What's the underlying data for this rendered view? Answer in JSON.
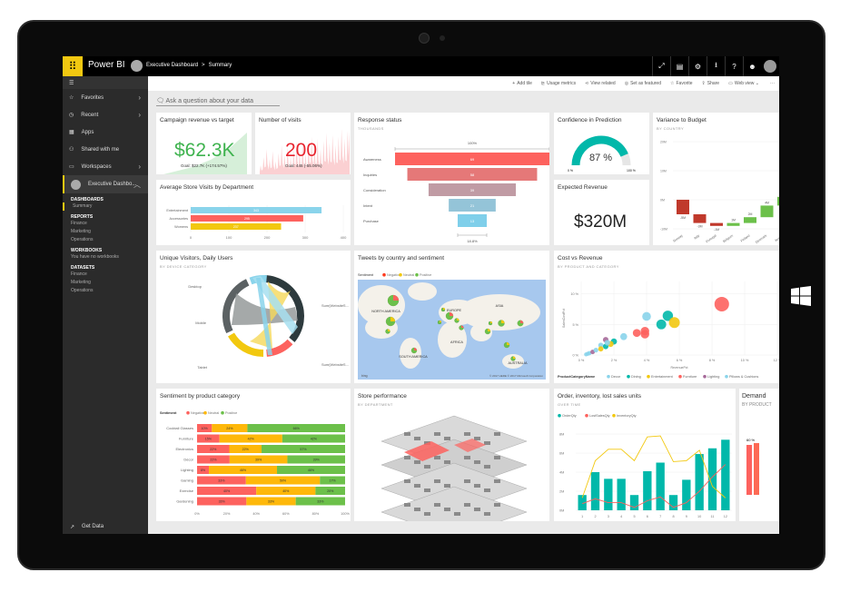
{
  "app": {
    "name": "Power BI",
    "breadcrumb": [
      "Executive Dashboard",
      "Summary"
    ],
    "breadcrumb_sep": ">"
  },
  "topbar_icons": [
    "expand-icon",
    "comment-icon",
    "gear-icon",
    "download-icon",
    "help-icon",
    "smiley-icon",
    "user-avatar-icon"
  ],
  "topbar_glyphs": [
    "⤢",
    "▤",
    "⚙",
    "⭳",
    "?",
    "☻",
    ""
  ],
  "sidebar": {
    "items": [
      {
        "label": "Favorites",
        "icon": "☆",
        "chev": true
      },
      {
        "label": "Recent",
        "icon": "◷",
        "chev": true
      },
      {
        "label": "Apps",
        "icon": "▦",
        "chev": false
      },
      {
        "label": "Shared with me",
        "icon": "⚇",
        "chev": false
      },
      {
        "label": "Workspaces",
        "icon": "▭",
        "chev": true
      }
    ],
    "workspace": "Executive Dashbo...",
    "sections": [
      {
        "title": "DASHBOARDS",
        "items": [
          "Summary"
        ]
      },
      {
        "title": "REPORTS",
        "items": [
          "Finance",
          "Marketing",
          "Operations"
        ]
      },
      {
        "title": "WORKBOOKS",
        "items": [
          "You have no workbooks"
        ]
      },
      {
        "title": "DATASETS",
        "items": [
          "Finance",
          "Marketing",
          "Operations"
        ]
      }
    ],
    "get_data": "Get Data"
  },
  "actionbar": [
    {
      "icon": "+",
      "label": "Add tile"
    },
    {
      "icon": "⊵",
      "label": "Usage metrics"
    },
    {
      "icon": "⋖",
      "label": "View related"
    },
    {
      "icon": "◎",
      "label": "Set as featured"
    },
    {
      "icon": "☆",
      "label": "Favorite"
    },
    {
      "icon": "⇪",
      "label": "Share"
    },
    {
      "icon": "▭",
      "label": "Web view ⌄"
    },
    {
      "icon": "",
      "label": "···"
    }
  ],
  "qna": {
    "placeholder": "Ask a question about your data"
  },
  "tiles": {
    "campaign": {
      "title": "Campaign revenue vs target",
      "value": "$62.3K",
      "goal": "Goal: $22.7K (+174.57%)",
      "color": "#3fb34f"
    },
    "visits": {
      "title": "Number of visits",
      "value": "200",
      "goal": "Goal: 445 (-55.06%)",
      "color": "#e8242e"
    },
    "response": {
      "title": "Response status",
      "subtitle": "THOUSANDS",
      "top": "100%",
      "bottom": "18.8%"
    },
    "confidence": {
      "title": "Confidence in Prediction",
      "value": "87 %",
      "min": "0 %",
      "max": "100 %",
      "percent": 87
    },
    "variance": {
      "title": "Variance to Budget",
      "subtitle": "BY COUNTRY"
    },
    "avgstore": {
      "title": "Average Store Visits by Department"
    },
    "expected": {
      "title": "Expected Revenue",
      "value": "$320M"
    },
    "unique": {
      "title": "Unique Visitors, Daily Users",
      "subtitle": "BY DEVICE CATEGORY",
      "labels": [
        "Desktop",
        "Mobile",
        "Tablet",
        "Sum(WebsiteS...",
        "Sum(WebsiteS..."
      ]
    },
    "tweets": {
      "title": "Tweets by country and sentiment",
      "legend_title": "Sentiment",
      "legend": [
        "Negative",
        "Neutral",
        "Positive"
      ],
      "regions": [
        "NORTH AMERICA",
        "EUROPE",
        "ASIA",
        "AFRICA",
        "SOUTH AMERICA",
        "AUSTRALIA"
      ],
      "credit": "© 2017 HERE   © 2017 Microsoft Corporation",
      "bing": "bing"
    },
    "cost": {
      "title": "Cost vs Revenue",
      "subtitle": "BY PRODUCT AND CATEGORY"
    },
    "sentiment": {
      "title": "Sentiment by product category"
    },
    "store": {
      "title": "Store performance",
      "subtitle": "BY DEPARTMENT"
    },
    "order": {
      "title": "Order, inventory, lost sales units",
      "subtitle": "OVER TIME"
    },
    "demand": {
      "title": "Demand",
      "subtitle": "BY PRODUCT",
      "bar_label": "60 %"
    }
  },
  "chart_data": [
    {
      "id": "response",
      "type": "funnel",
      "categories": [
        "Awareness",
        "Inquiries",
        "Consideration",
        "Intent",
        "Purchase"
      ],
      "values": [
        69,
        58,
        39,
        21,
        13
      ],
      "colors": [
        "#fd625e",
        "#e57878",
        "#c09ba4",
        "#94c4d8",
        "#7fcfea"
      ]
    },
    {
      "id": "avgstore",
      "type": "bar",
      "orientation": "horizontal",
      "categories": [
        "Entertainment",
        "Accessories",
        "Womens"
      ],
      "values": [
        343,
        295,
        237
      ],
      "colors": [
        "#8ad4eb",
        "#fd625e",
        "#f2c80f"
      ],
      "xlim": [
        0,
        400
      ],
      "xticks": [
        0,
        100,
        200,
        300,
        400
      ]
    },
    {
      "id": "variance",
      "type": "waterfall",
      "categories": [
        "Norway",
        "Italy",
        "Portugal",
        "Belgium",
        "Finland",
        "Denmark",
        "Austria"
      ],
      "values": [
        -5,
        -3,
        -1,
        1,
        2,
        4,
        3
      ],
      "labels": [
        "-5M",
        "-3M",
        "-1M",
        "1M",
        "2M",
        "4M",
        ""
      ],
      "yticks": [
        "20M",
        "10M",
        "0M",
        "-10M"
      ],
      "ylim": [
        -10,
        20
      ],
      "colors": {
        "neg": "#c0392b",
        "pos": "#6cc04a"
      }
    },
    {
      "id": "cost",
      "type": "scatter",
      "xlabel": "RevenuePct",
      "ylabel": "SalesCostPct",
      "xticks": [
        "0 %",
        "2 %",
        "4 %",
        "6 %",
        "8 %",
        "10 %",
        "12 %"
      ],
      "yticks": [
        "0 %",
        "5 %",
        "10 %"
      ],
      "xlim": [
        0,
        12
      ],
      "ylim": [
        0,
        12
      ],
      "legend_title": "ProductCategoryName",
      "series": [
        {
          "name": "Decor",
          "color": "#8ad4eb",
          "points": [
            [
              4.0,
              6.3
            ],
            [
              2.6,
              3.0
            ],
            [
              1.2,
              1.6
            ],
            [
              0.3,
              0.1
            ],
            [
              0.5,
              0.3
            ]
          ]
        },
        {
          "name": "Dining",
          "color": "#01b8aa",
          "points": [
            [
              5.3,
              6.4
            ],
            [
              4.9,
              5.0
            ],
            [
              2.0,
              2.2
            ],
            [
              1.5,
              1.4
            ]
          ]
        },
        {
          "name": "Entertainment",
          "color": "#f2c80f",
          "points": [
            [
              5.7,
              5.3
            ],
            [
              1.8,
              1.8
            ],
            [
              1.2,
              1.0
            ]
          ]
        },
        {
          "name": "Furniture",
          "color": "#fd625e",
          "points": [
            [
              8.6,
              8.3
            ],
            [
              3.4,
              3.6
            ],
            [
              3.9,
              3.9
            ],
            [
              3.9,
              3.4
            ]
          ]
        },
        {
          "name": "Lighting",
          "color": "#a66999",
          "points": [
            [
              1.5,
              2.5
            ],
            [
              0.7,
              0.5
            ]
          ]
        },
        {
          "name": "Pillows & Cushions",
          "color": "#8ad4eb",
          "points": [
            [
              1.6,
              2.0
            ],
            [
              0.9,
              0.8
            ],
            [
              0.4,
              0.2
            ]
          ]
        }
      ]
    },
    {
      "id": "sentiment",
      "type": "bar",
      "orientation": "horizontal",
      "stacked": true,
      "legend_title": "Sentiment",
      "categories": [
        "Cocktail Glasses",
        "Furniture",
        "Electronics",
        "Décor",
        "Lighting",
        "Gaming",
        "Exercise",
        "Gardening"
      ],
      "series": [
        {
          "name": "Negative",
          "color": "#fd625e",
          "values": [
            10,
            15,
            22,
            22,
            8,
            33,
            40,
            33
          ]
        },
        {
          "name": "Neutral",
          "color": "#feb80a",
          "values": [
            24,
            42,
            22,
            39,
            46,
            50,
            40,
            33
          ]
        },
        {
          "name": "Positive",
          "color": "#6cc04a",
          "values": [
            66,
            42,
            57,
            39,
            46,
            17,
            20,
            33
          ]
        }
      ],
      "xticks": [
        "0%",
        "20%",
        "40%",
        "60%",
        "80%",
        "100%"
      ]
    },
    {
      "id": "order",
      "type": "bar+line",
      "categories": [
        "1",
        "2",
        "3",
        "4",
        "5",
        "6",
        "7",
        "8",
        "9",
        "10",
        "11",
        "12"
      ],
      "yticks": [
        "0M",
        "2M",
        "4M",
        "6M",
        "8M"
      ],
      "ylim": [
        0,
        8
      ],
      "series": [
        {
          "name": "OrderQty",
          "type": "bar",
          "color": "#01b8aa",
          "values": [
            1.6,
            4.0,
            3.3,
            3.3,
            1.6,
            4.1,
            5.0,
            1.6,
            3.2,
            5.9,
            6.5,
            7.4
          ]
        },
        {
          "name": "LostSalesQty",
          "type": "line",
          "color": "#fd625e",
          "values": [
            0.7,
            1.2,
            0.8,
            0.8,
            0.3,
            1.0,
            1.4,
            0.3,
            0.8,
            2.0,
            3.5,
            4.8
          ]
        },
        {
          "name": "InventoryQty",
          "type": "line",
          "color": "#f2c80f",
          "values": [
            1.3,
            5.2,
            6.4,
            6.4,
            5.2,
            7.7,
            7.8,
            5.1,
            5.2,
            6.3,
            2.5,
            1.3
          ]
        }
      ]
    }
  ]
}
